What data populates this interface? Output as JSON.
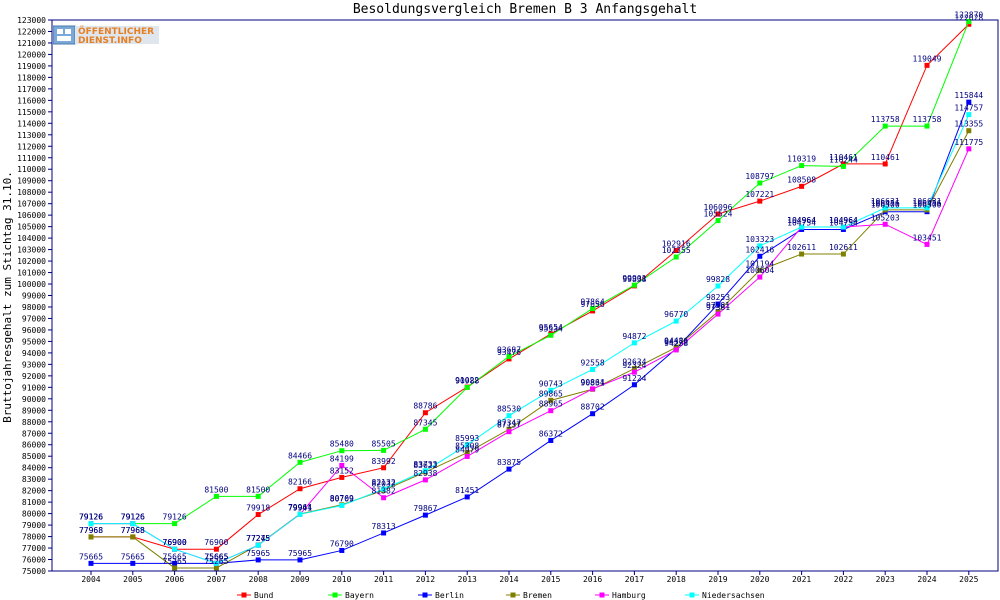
{
  "logo": {
    "line1": "ÖFFENTLICHER",
    "line2": "DIENST.INFO"
  },
  "chart_data": {
    "type": "line",
    "title": "Besoldungsvergleich Bremen B 3 Anfangsgehalt",
    "xlabel": "",
    "ylabel": "Bruttojahresgehalt zum Stichtag 31.10.",
    "ylim": [
      75000,
      123000
    ],
    "ytick_step": 1000,
    "grid": false,
    "legend_position": "bottom",
    "categories": [
      "2004",
      "2005",
      "2006",
      "2007",
      "2008",
      "2009",
      "2010",
      "2011",
      "2012",
      "2013",
      "2014",
      "2015",
      "2016",
      "2017",
      "2018",
      "2019",
      "2020",
      "2021",
      "2022",
      "2023",
      "2024",
      "2025"
    ],
    "series": [
      {
        "name": "Bund",
        "color": "#ff0000",
        "values": [
          77968,
          77968,
          76900,
          76900,
          79918,
          82166,
          83152,
          83992,
          88786,
          91022,
          93476,
          95654,
          97656,
          99838,
          102916,
          106096,
          107221,
          108508,
          110461,
          110461,
          119049,
          122628
        ]
      },
      {
        "name": "Bayern",
        "color": "#00ff00",
        "values": [
          79126,
          79126,
          79126,
          81500,
          81500,
          84466,
          85480,
          85505,
          87345,
          90988,
          93687,
          95534,
          97864,
          99901,
          102355,
          105524,
          108797,
          110319,
          110244,
          113758,
          113758,
          122870
        ]
      },
      {
        "name": "Berlin",
        "color": "#0000ff",
        "values": [
          75665,
          75665,
          75665,
          75665,
          75965,
          75965,
          76790,
          78313,
          79867,
          81451,
          83875,
          86372,
          88702,
          91224,
          94372,
          98253,
          102416,
          104754,
          104754,
          106300,
          106300,
          115844
        ]
      },
      {
        "name": "Bremen",
        "color": "#808000",
        "values": [
          77968,
          77968,
          75265,
          75265,
          77275,
          79964,
          80769,
          82032,
          83622,
          85308,
          87347,
          89865,
          90831,
          92634,
          94486,
          97581,
          101194,
          102611,
          102611,
          106456,
          106456,
          113355
        ]
      },
      {
        "name": "Hamburg",
        "color": "#ff00ff",
        "values": [
          79126,
          79126,
          76900,
          75665,
          77245,
          79941,
          84199,
          81382,
          82938,
          84979,
          87137,
          88965,
          90864,
          92324,
          94258,
          97381,
          100604,
          104964,
          104964,
          105203,
          103451,
          111775
        ]
      },
      {
        "name": "Niedersachsen",
        "color": "#00ffff",
        "values": [
          79126,
          79126,
          76900,
          75665,
          77245,
          79941,
          80709,
          82132,
          83733,
          85993,
          88530,
          90743,
          92558,
          94872,
          96770,
          99828,
          103323,
          104964,
          104964,
          106631,
          106631,
          114757
        ]
      }
    ]
  }
}
